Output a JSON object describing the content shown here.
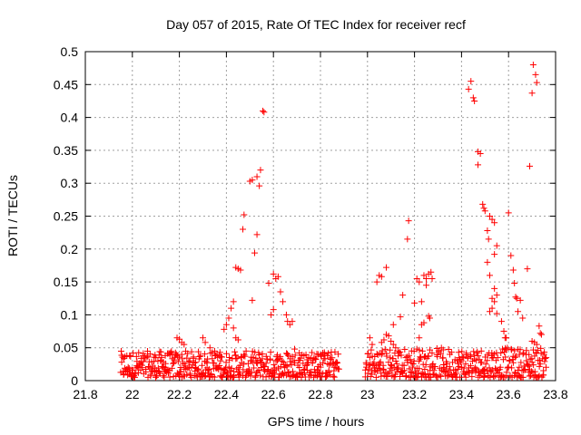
{
  "chart_data": {
    "type": "scatter",
    "title": "Day 057 of 2015, Rate Of TEC Index for receiver recf",
    "xlabel": "GPS time / hours",
    "ylabel": "ROTI / TECUs",
    "xlim": [
      21.8,
      23.8
    ],
    "ylim": [
      0,
      0.5
    ],
    "xticks": [
      "21.8",
      "22",
      "22.2",
      "22.4",
      "22.6",
      "22.8",
      "23",
      "23.2",
      "23.4",
      "23.6",
      "23.8"
    ],
    "xtick_values": [
      21.8,
      22.0,
      22.2,
      22.4,
      22.6,
      22.8,
      23.0,
      23.2,
      23.4,
      23.6,
      23.8
    ],
    "yticks": [
      "0",
      "0.05",
      "0.1",
      "0.15",
      "0.2",
      "0.25",
      "0.3",
      "0.35",
      "0.4",
      "0.45",
      "0.5"
    ],
    "ytick_values": [
      0,
      0.05,
      0.1,
      0.15,
      0.2,
      0.25,
      0.3,
      0.35,
      0.4,
      0.45,
      0.5
    ],
    "grid": true,
    "marker": "+",
    "series": [
      {
        "name": "ROTI",
        "color": "#ff0000",
        "points": [
          [
            22.555,
            0.41
          ],
          [
            22.56,
            0.408
          ],
          [
            22.5,
            0.303
          ],
          [
            22.51,
            0.305
          ],
          [
            22.53,
            0.31
          ],
          [
            22.545,
            0.32
          ],
          [
            22.54,
            0.296
          ],
          [
            22.475,
            0.252
          ],
          [
            22.47,
            0.23
          ],
          [
            22.53,
            0.222
          ],
          [
            22.52,
            0.194
          ],
          [
            22.44,
            0.172
          ],
          [
            22.45,
            0.17
          ],
          [
            22.46,
            0.168
          ],
          [
            22.6,
            0.162
          ],
          [
            22.61,
            0.155
          ],
          [
            22.62,
            0.158
          ],
          [
            22.58,
            0.148
          ],
          [
            22.63,
            0.135
          ],
          [
            22.64,
            0.12
          ],
          [
            22.51,
            0.122
          ],
          [
            22.43,
            0.12
          ],
          [
            22.6,
            0.108
          ],
          [
            22.655,
            0.1
          ],
          [
            22.66,
            0.09
          ],
          [
            22.67,
            0.085
          ],
          [
            22.68,
            0.09
          ],
          [
            22.59,
            0.1
          ],
          [
            22.42,
            0.11
          ],
          [
            22.41,
            0.095
          ],
          [
            22.4,
            0.085
          ],
          [
            22.39,
            0.078
          ],
          [
            22.43,
            0.08
          ],
          [
            22.44,
            0.065
          ],
          [
            22.45,
            0.062
          ],
          [
            22.2,
            0.063
          ],
          [
            22.19,
            0.065
          ],
          [
            22.21,
            0.058
          ],
          [
            22.22,
            0.055
          ],
          [
            22.3,
            0.065
          ],
          [
            22.31,
            0.058
          ],
          [
            22.33,
            0.05
          ],
          [
            22.35,
            0.045
          ],
          [
            22.36,
            0.04
          ],
          [
            22.37,
            0.038
          ],
          [
            22.69,
            0.048
          ],
          [
            22.71,
            0.042
          ],
          [
            22.73,
            0.038
          ],
          [
            22.75,
            0.035
          ],
          [
            22.79,
            0.04
          ],
          [
            22.81,
            0.042
          ],
          [
            22.83,
            0.038
          ],
          [
            22.1,
            0.035
          ],
          [
            22.12,
            0.03
          ],
          [
            22.14,
            0.038
          ],
          [
            23.08,
            0.172
          ],
          [
            23.05,
            0.16
          ],
          [
            23.06,
            0.158
          ],
          [
            23.04,
            0.15
          ],
          [
            23.15,
            0.13
          ],
          [
            23.14,
            0.097
          ],
          [
            23.11,
            0.085
          ],
          [
            23.17,
            0.215
          ],
          [
            23.175,
            0.243
          ],
          [
            23.21,
            0.155
          ],
          [
            23.22,
            0.15
          ],
          [
            23.24,
            0.16
          ],
          [
            23.25,
            0.155
          ],
          [
            23.26,
            0.162
          ],
          [
            23.27,
            0.165
          ],
          [
            23.275,
            0.155
          ],
          [
            23.23,
            0.12
          ],
          [
            23.2,
            0.118
          ],
          [
            23.25,
            0.145
          ],
          [
            23.26,
            0.098
          ],
          [
            23.265,
            0.095
          ],
          [
            23.24,
            0.088
          ],
          [
            23.23,
            0.085
          ],
          [
            23.22,
            0.065
          ],
          [
            23.01,
            0.065
          ],
          [
            23.02,
            0.055
          ],
          [
            23.08,
            0.07
          ],
          [
            23.09,
            0.068
          ],
          [
            23.1,
            0.06
          ],
          [
            23.11,
            0.055
          ],
          [
            23.12,
            0.05
          ],
          [
            23.13,
            0.045
          ],
          [
            23.07,
            0.062
          ],
          [
            23.06,
            0.058
          ],
          [
            23.44,
            0.455
          ],
          [
            23.43,
            0.443
          ],
          [
            23.45,
            0.43
          ],
          [
            23.455,
            0.425
          ],
          [
            23.47,
            0.348
          ],
          [
            23.48,
            0.345
          ],
          [
            23.47,
            0.328
          ],
          [
            23.49,
            0.268
          ],
          [
            23.495,
            0.262
          ],
          [
            23.5,
            0.258
          ],
          [
            23.52,
            0.25
          ],
          [
            23.53,
            0.245
          ],
          [
            23.51,
            0.228
          ],
          [
            23.515,
            0.215
          ],
          [
            23.54,
            0.24
          ],
          [
            23.55,
            0.205
          ],
          [
            23.54,
            0.192
          ],
          [
            23.51,
            0.18
          ],
          [
            23.52,
            0.16
          ],
          [
            23.54,
            0.14
          ],
          [
            23.55,
            0.13
          ],
          [
            23.53,
            0.125
          ],
          [
            23.54,
            0.12
          ],
          [
            23.52,
            0.105
          ],
          [
            23.53,
            0.11
          ],
          [
            23.55,
            0.102
          ],
          [
            23.57,
            0.09
          ],
          [
            23.58,
            0.075
          ],
          [
            23.585,
            0.065
          ],
          [
            23.59,
            0.065
          ],
          [
            23.6,
            0.255
          ],
          [
            23.61,
            0.19
          ],
          [
            23.62,
            0.168
          ],
          [
            23.625,
            0.148
          ],
          [
            23.63,
            0.127
          ],
          [
            23.635,
            0.125
          ],
          [
            23.65,
            0.122
          ],
          [
            23.64,
            0.105
          ],
          [
            23.66,
            0.095
          ],
          [
            23.68,
            0.17
          ],
          [
            23.69,
            0.326
          ],
          [
            23.7,
            0.437
          ],
          [
            23.705,
            0.48
          ],
          [
            23.715,
            0.465
          ],
          [
            23.72,
            0.453
          ],
          [
            23.7,
            0.06
          ],
          [
            23.71,
            0.058
          ],
          [
            23.72,
            0.055
          ],
          [
            23.73,
            0.083
          ],
          [
            23.735,
            0.072
          ],
          [
            23.74,
            0.07
          ],
          [
            23.75,
            0.04
          ],
          [
            23.76,
            0.035
          ]
        ]
      }
    ],
    "dense_band": [
      {
        "x_start": 21.95,
        "x_end": 22.88,
        "y_min": 0.005,
        "y_max": 0.045
      },
      {
        "x_start": 22.99,
        "x_end": 23.76,
        "y_min": 0.005,
        "y_max": 0.05
      }
    ]
  }
}
